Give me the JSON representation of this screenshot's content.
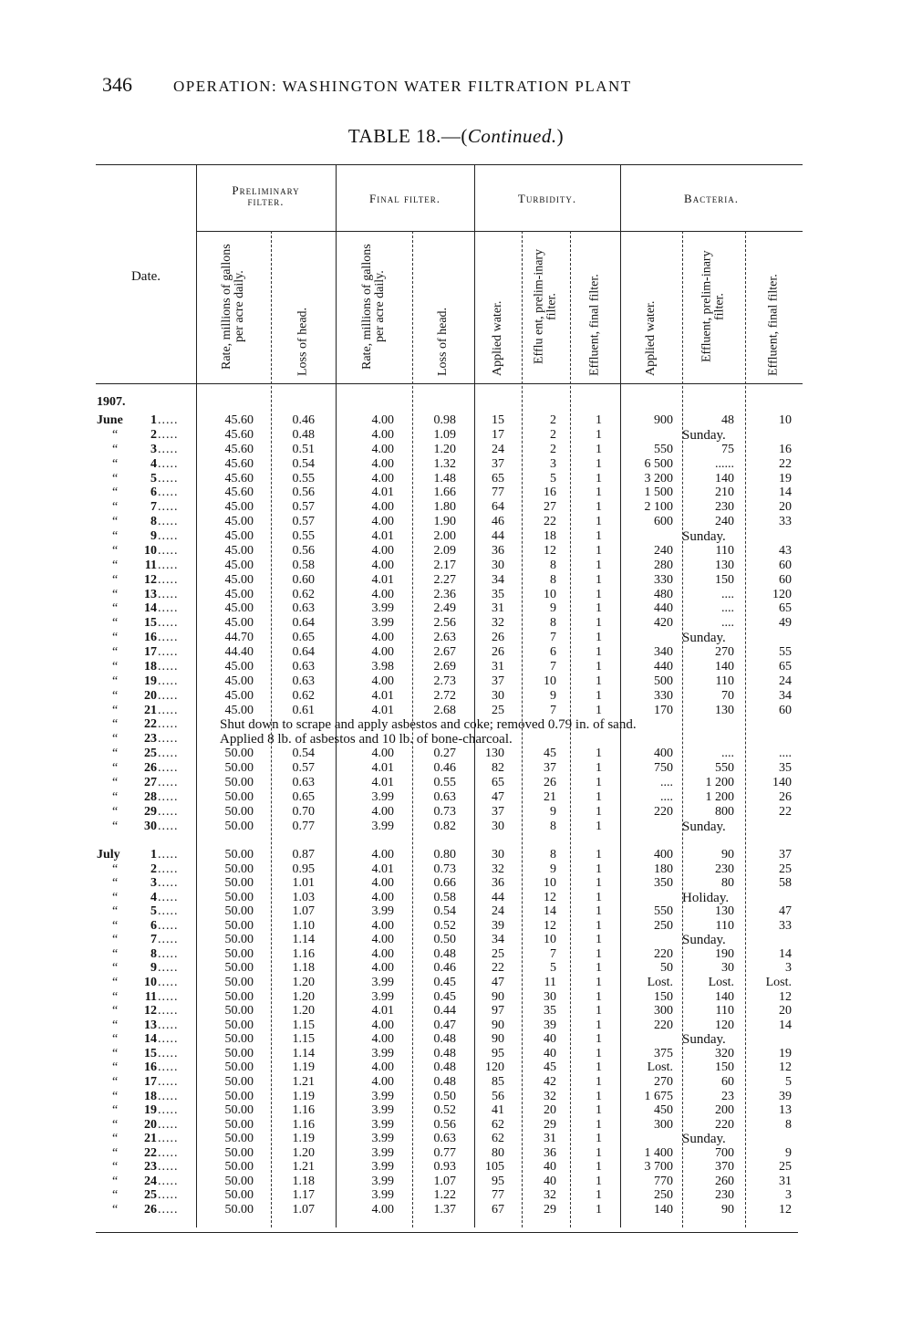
{
  "page_number": "346",
  "running_head": "OPERATION: WASHINGTON WATER FILTRATION PLANT",
  "table_title": {
    "prefix": "TABLE 18.—(",
    "italic": "Continued.",
    "suffix": ")"
  },
  "headers": {
    "date": "Date.",
    "groups": [
      "Preliminary filter.",
      "Final filter.",
      "Turbidity.",
      "Bacteria."
    ],
    "columns": [
      "Rate, millions of gallons per acre daily.",
      "Loss of head.",
      "Rate, millions of gallons per acre daily.",
      "Loss of head.",
      "Applied water.",
      "Efflu ent, prelim-inary filter.",
      "Effluent, final filter.",
      "Applied water.",
      "Effluent, prelim-inary filter.",
      "Effluent, final filter."
    ]
  },
  "year": "1907.",
  "ditto": "“",
  "months": [
    {
      "name": "June",
      "rows": [
        {
          "d": "1",
          "v": [
            "45.60",
            "0.46",
            "4.00",
            "0.98",
            "15",
            "2",
            "1",
            "900",
            "48",
            "10"
          ]
        },
        {
          "d": "2",
          "v": [
            "45.60",
            "0.48",
            "4.00",
            "1.09",
            "17",
            "2",
            "1"
          ],
          "bact_note": "Sunday."
        },
        {
          "d": "3",
          "v": [
            "45.60",
            "0.51",
            "4.00",
            "1.20",
            "24",
            "2",
            "1",
            "550",
            "75",
            "16"
          ]
        },
        {
          "d": "4",
          "v": [
            "45.60",
            "0.54",
            "4.00",
            "1.32",
            "37",
            "3",
            "1",
            "6 500",
            "......",
            "22"
          ]
        },
        {
          "d": "5",
          "v": [
            "45.60",
            "0.55",
            "4.00",
            "1.48",
            "65",
            "5",
            "1",
            "3 200",
            "140",
            "19"
          ]
        },
        {
          "d": "6",
          "v": [
            "45.60",
            "0.56",
            "4.01",
            "1.66",
            "77",
            "16",
            "1",
            "1 500",
            "210",
            "14"
          ]
        },
        {
          "d": "7",
          "v": [
            "45.00",
            "0.57",
            "4.00",
            "1.80",
            "64",
            "27",
            "1",
            "2 100",
            "230",
            "20"
          ]
        },
        {
          "d": "8",
          "v": [
            "45.00",
            "0.57",
            "4.00",
            "1.90",
            "46",
            "22",
            "1",
            "600",
            "240",
            "33"
          ]
        },
        {
          "d": "9",
          "v": [
            "45.00",
            "0.55",
            "4.01",
            "2.00",
            "44",
            "18",
            "1"
          ],
          "bact_note": "Sunday."
        },
        {
          "d": "10",
          "v": [
            "45.00",
            "0.56",
            "4.00",
            "2.09",
            "36",
            "12",
            "1",
            "240",
            "110",
            "43"
          ]
        },
        {
          "d": "11",
          "v": [
            "45.00",
            "0.58",
            "4.00",
            "2.17",
            "30",
            "8",
            "1",
            "280",
            "130",
            "60"
          ]
        },
        {
          "d": "12",
          "v": [
            "45.00",
            "0.60",
            "4.01",
            "2.27",
            "34",
            "8",
            "1",
            "330",
            "150",
            "60"
          ]
        },
        {
          "d": "13",
          "v": [
            "45.00",
            "0.62",
            "4.00",
            "2.36",
            "35",
            "10",
            "1",
            "480",
            "....",
            "120"
          ]
        },
        {
          "d": "14",
          "v": [
            "45.00",
            "0.63",
            "3.99",
            "2.49",
            "31",
            "9",
            "1",
            "440",
            "....",
            "65"
          ]
        },
        {
          "d": "15",
          "v": [
            "45.00",
            "0.64",
            "3.99",
            "2.56",
            "32",
            "8",
            "1",
            "420",
            "....",
            "49"
          ]
        },
        {
          "d": "16",
          "v": [
            "44.70",
            "0.65",
            "4.00",
            "2.63",
            "26",
            "7",
            "1"
          ],
          "bact_note": "Sunday."
        },
        {
          "d": "17",
          "v": [
            "44.40",
            "0.64",
            "4.00",
            "2.67",
            "26",
            "6",
            "1",
            "340",
            "270",
            "55"
          ]
        },
        {
          "d": "18",
          "v": [
            "45.00",
            "0.63",
            "3.98",
            "2.69",
            "31",
            "7",
            "1",
            "440",
            "140",
            "65"
          ]
        },
        {
          "d": "19",
          "v": [
            "45.00",
            "0.63",
            "4.00",
            "2.73",
            "37",
            "10",
            "1",
            "500",
            "110",
            "24"
          ]
        },
        {
          "d": "20",
          "v": [
            "45.00",
            "0.62",
            "4.01",
            "2.72",
            "30",
            "9",
            "1",
            "330",
            "70",
            "34"
          ]
        },
        {
          "d": "21",
          "v": [
            "45.00",
            "0.61",
            "4.01",
            "2.68",
            "25",
            "7",
            "1",
            "170",
            "130",
            "60"
          ]
        },
        {
          "d": "22",
          "note": "Shut down to scrape and apply asbestos and coke; removed 0.79 in. of sand."
        },
        {
          "d": "23",
          "note": "Applied 8 lb. of asbestos and 10 lb. of bone-charcoal."
        },
        {
          "d": "25",
          "v": [
            "50.00",
            "0.54",
            "4.00",
            "0.27",
            "130",
            "45",
            "1",
            "400",
            "....",
            "...."
          ]
        },
        {
          "d": "26",
          "v": [
            "50.00",
            "0.57",
            "4.01",
            "0.46",
            "82",
            "37",
            "1",
            "750",
            "550",
            "35"
          ]
        },
        {
          "d": "27",
          "v": [
            "50.00",
            "0.63",
            "4.01",
            "0.55",
            "65",
            "26",
            "1",
            "....",
            "1 200",
            "140"
          ]
        },
        {
          "d": "28",
          "v": [
            "50.00",
            "0.65",
            "3.99",
            "0.63",
            "47",
            "21",
            "1",
            "....",
            "1 200",
            "26"
          ]
        },
        {
          "d": "29",
          "v": [
            "50.00",
            "0.70",
            "4.00",
            "0.73",
            "37",
            "9",
            "1",
            "220",
            "800",
            "22"
          ]
        },
        {
          "d": "30",
          "v": [
            "50.00",
            "0.77",
            "3.99",
            "0.82",
            "30",
            "8",
            "1"
          ],
          "bact_note": "Sunday."
        }
      ]
    },
    {
      "name": "July",
      "rows": [
        {
          "d": "1",
          "v": [
            "50.00",
            "0.87",
            "4.00",
            "0.80",
            "30",
            "8",
            "1",
            "400",
            "90",
            "37"
          ]
        },
        {
          "d": "2",
          "v": [
            "50.00",
            "0.95",
            "4.01",
            "0.73",
            "32",
            "9",
            "1",
            "180",
            "230",
            "25"
          ]
        },
        {
          "d": "3",
          "v": [
            "50.00",
            "1.01",
            "4.00",
            "0.66",
            "36",
            "10",
            "1",
            "350",
            "80",
            "58"
          ]
        },
        {
          "d": "4",
          "v": [
            "50.00",
            "1.03",
            "4.00",
            "0.58",
            "44",
            "12",
            "1"
          ],
          "bact_note": "Holiday."
        },
        {
          "d": "5",
          "v": [
            "50.00",
            "1.07",
            "3.99",
            "0.54",
            "24",
            "14",
            "1",
            "550",
            "130",
            "47"
          ]
        },
        {
          "d": "6",
          "v": [
            "50.00",
            "1.10",
            "4.00",
            "0.52",
            "39",
            "12",
            "1",
            "250",
            "110",
            "33"
          ]
        },
        {
          "d": "7",
          "v": [
            "50.00",
            "1.14",
            "4.00",
            "0.50",
            "34",
            "10",
            "1"
          ],
          "bact_note": "Sunday."
        },
        {
          "d": "8",
          "v": [
            "50.00",
            "1.16",
            "4.00",
            "0.48",
            "25",
            "7",
            "1",
            "220",
            "190",
            "14"
          ]
        },
        {
          "d": "9",
          "v": [
            "50.00",
            "1.18",
            "4.00",
            "0.46",
            "22",
            "5",
            "1",
            "50",
            "30",
            "3"
          ]
        },
        {
          "d": "10",
          "v": [
            "50.00",
            "1.20",
            "3.99",
            "0.45",
            "47",
            "11",
            "1",
            "Lost.",
            "Lost.",
            "Lost."
          ]
        },
        {
          "d": "11",
          "v": [
            "50.00",
            "1.20",
            "3.99",
            "0.45",
            "90",
            "30",
            "1",
            "150",
            "140",
            "12"
          ]
        },
        {
          "d": "12",
          "v": [
            "50.00",
            "1.20",
            "4.01",
            "0.44",
            "97",
            "35",
            "1",
            "300",
            "110",
            "20"
          ]
        },
        {
          "d": "13",
          "v": [
            "50.00",
            "1.15",
            "4.00",
            "0.47",
            "90",
            "39",
            "1",
            "220",
            "120",
            "14"
          ]
        },
        {
          "d": "14",
          "v": [
            "50.00",
            "1.15",
            "4.00",
            "0.48",
            "90",
            "40",
            "1"
          ],
          "bact_note": "Sunday."
        },
        {
          "d": "15",
          "v": [
            "50.00",
            "1.14",
            "3.99",
            "0.48",
            "95",
            "40",
            "1",
            "375",
            "320",
            "19"
          ]
        },
        {
          "d": "16",
          "v": [
            "50.00",
            "1.19",
            "4.00",
            "0.48",
            "120",
            "45",
            "1",
            "Lost.",
            "150",
            "12"
          ]
        },
        {
          "d": "17",
          "v": [
            "50.00",
            "1.21",
            "4.00",
            "0.48",
            "85",
            "42",
            "1",
            "270",
            "60",
            "5"
          ]
        },
        {
          "d": "18",
          "v": [
            "50.00",
            "1.19",
            "3.99",
            "0.50",
            "56",
            "32",
            "1",
            "1 675",
            "23",
            "39"
          ]
        },
        {
          "d": "19",
          "v": [
            "50.00",
            "1.16",
            "3.99",
            "0.52",
            "41",
            "20",
            "1",
            "450",
            "200",
            "13"
          ]
        },
        {
          "d": "20",
          "v": [
            "50.00",
            "1.16",
            "3.99",
            "0.56",
            "62",
            "29",
            "1",
            "300",
            "220",
            "8"
          ]
        },
        {
          "d": "21",
          "v": [
            "50.00",
            "1.19",
            "3.99",
            "0.63",
            "62",
            "31",
            "1"
          ],
          "bact_note": "Sunday."
        },
        {
          "d": "22",
          "v": [
            "50.00",
            "1.20",
            "3.99",
            "0.77",
            "80",
            "36",
            "1",
            "1 400",
            "700",
            "9"
          ]
        },
        {
          "d": "23",
          "v": [
            "50.00",
            "1.21",
            "3.99",
            "0.93",
            "105",
            "40",
            "1",
            "3 700",
            "370",
            "25"
          ]
        },
        {
          "d": "24",
          "v": [
            "50.00",
            "1.18",
            "3.99",
            "1.07",
            "95",
            "40",
            "1",
            "770",
            "260",
            "31"
          ]
        },
        {
          "d": "25",
          "v": [
            "50.00",
            "1.17",
            "3.99",
            "1.22",
            "77",
            "32",
            "1",
            "250",
            "230",
            "3"
          ]
        },
        {
          "d": "26",
          "v": [
            "50.00",
            "1.07",
            "4.00",
            "1.37",
            "67",
            "29",
            "1",
            "140",
            "90",
            "12"
          ]
        }
      ]
    }
  ]
}
